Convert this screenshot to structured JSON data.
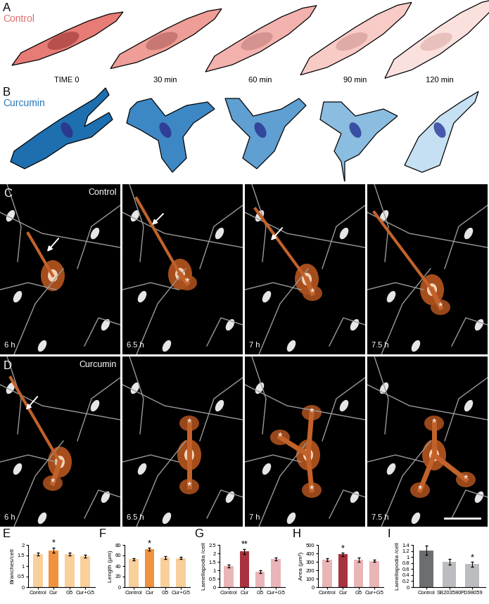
{
  "panels": {
    "A": {
      "label": "A",
      "title": "Control",
      "times": [
        "TIME 0",
        "30 min",
        "60 min",
        "90 min",
        "120 min"
      ]
    },
    "B": {
      "label": "B",
      "title": "Curcumin"
    },
    "C": {
      "label": "C",
      "title": "Control",
      "frames": [
        "6 h",
        "6.5 h",
        "7 h",
        "7.5 h"
      ],
      "asterisks": [
        0,
        1,
        1,
        1
      ],
      "arrows": [
        1,
        1,
        1,
        0
      ]
    },
    "D": {
      "label": "D",
      "title": "Curcumin",
      "frames": [
        "6 h",
        "6.5 h",
        "7 h",
        "7.5 h"
      ],
      "asterisks": [
        1,
        2,
        3,
        3
      ],
      "arrows": [
        1,
        0,
        0,
        0
      ]
    }
  },
  "asterisk": "*",
  "chart_data": [
    {
      "panel": "E",
      "type": "bar",
      "ylabel": "Branches/cell",
      "categories": [
        "Control",
        "Cur",
        "G5",
        "Cur+G5"
      ],
      "values": [
        1.57,
        1.75,
        1.57,
        1.47
      ],
      "errors": [
        0.08,
        0.12,
        0.08,
        0.08
      ],
      "colors": [
        "#f9cf9a",
        "#f0923e",
        "#f9cf9a",
        "#f9cf9a"
      ],
      "ylim": [
        0,
        2
      ],
      "yticks": [
        0,
        0.5,
        1,
        1.5,
        2
      ],
      "annotations": [
        {
          "category": "Cur",
          "text": "*"
        }
      ]
    },
    {
      "panel": "F",
      "type": "bar",
      "ylabel": "Length (µm)",
      "categories": [
        "Control",
        "Cur",
        "G5",
        "Cur+G5"
      ],
      "values": [
        53,
        72,
        56,
        55
      ],
      "errors": [
        2,
        2.5,
        3,
        2
      ],
      "colors": [
        "#f9cf9a",
        "#f0923e",
        "#f9cf9a",
        "#f9cf9a"
      ],
      "ylim": [
        0,
        80
      ],
      "yticks": [
        0,
        20,
        40,
        60,
        80
      ],
      "annotations": [
        {
          "category": "Cur",
          "text": "*"
        }
      ]
    },
    {
      "panel": "G",
      "type": "bar",
      "ylabel": "Lamellapodia /cell",
      "categories": [
        "Control",
        "Cur",
        "G5",
        "Cur+G5"
      ],
      "values": [
        1.25,
        2.12,
        0.92,
        1.65
      ],
      "errors": [
        0.08,
        0.15,
        0.08,
        0.08
      ],
      "colors": [
        "#e9b5b7",
        "#a8323e",
        "#e9b5b7",
        "#e9b5b7"
      ],
      "ylim": [
        0,
        2.5
      ],
      "yticks": [
        0,
        0.5,
        1,
        1.5,
        2,
        2.5
      ],
      "annotations": [
        {
          "category": "Cur",
          "text": "**"
        }
      ]
    },
    {
      "panel": "H",
      "type": "bar",
      "ylabel": "Area (µm²)",
      "categories": [
        "Control",
        "Cur",
        "G5",
        "Cur+G5"
      ],
      "values": [
        325,
        388,
        325,
        312
      ],
      "errors": [
        15,
        18,
        25,
        15
      ],
      "colors": [
        "#e9b5b7",
        "#a8323e",
        "#e9b5b7",
        "#e9b5b7"
      ],
      "ylim": [
        0,
        500
      ],
      "yticks": [
        0,
        100,
        200,
        300,
        400,
        500
      ],
      "annotations": [
        {
          "category": "Cur",
          "text": "*"
        }
      ]
    },
    {
      "panel": "I",
      "type": "bar",
      "ylabel": "Lamellapodia /cell",
      "categories": [
        "Control",
        "SB203580",
        "PD98059"
      ],
      "values": [
        1.22,
        0.84,
        0.76
      ],
      "errors": [
        0.15,
        0.1,
        0.08
      ],
      "colors": [
        "#6d6e71",
        "#bcbdc0",
        "#bcbdc0"
      ],
      "ylim": [
        0,
        1.4
      ],
      "yticks": [
        0,
        0.2,
        0.4,
        0.6,
        0.8,
        1,
        1.2,
        1.4
      ],
      "annotations": [
        {
          "category": "PD98059",
          "text": "*"
        }
      ]
    }
  ]
}
